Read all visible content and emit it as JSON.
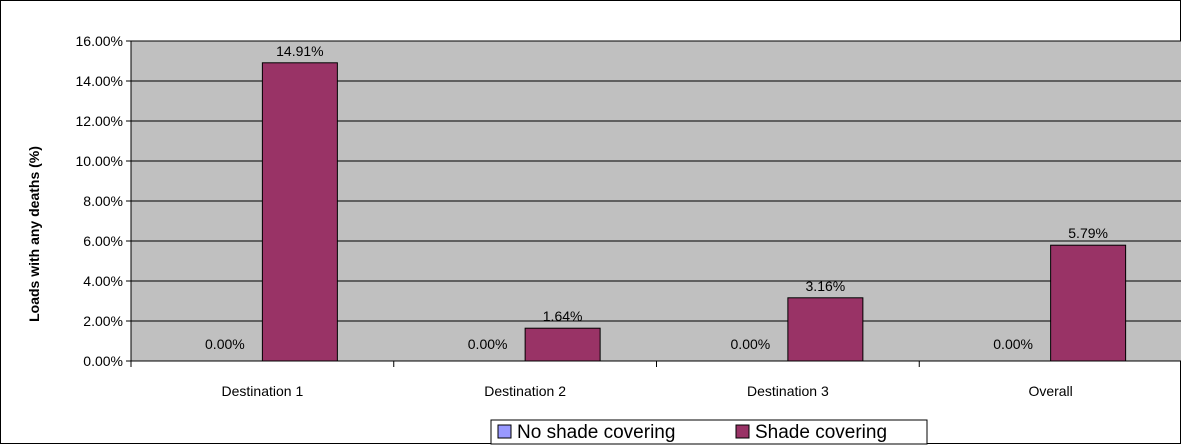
{
  "chart_data": {
    "type": "bar",
    "title": "",
    "xlabel": "",
    "ylabel": "Loads with any deaths (%)",
    "ylim": [
      0,
      16
    ],
    "ytick_step": 2,
    "ytick_labels": [
      "0.00%",
      "2.00%",
      "4.00%",
      "6.00%",
      "8.00%",
      "10.00%",
      "12.00%",
      "14.00%",
      "16.00%"
    ],
    "categories": [
      "Destination 1",
      "Destination 2",
      "Destination 3",
      "Overall"
    ],
    "series": [
      {
        "name": "No shade covering",
        "color": "#9999ff",
        "values": [
          0.0,
          0.0,
          0.0,
          0.0
        ],
        "labels": [
          "0.00%",
          "0.00%",
          "0.00%",
          "0.00%"
        ]
      },
      {
        "name": "Shade covering",
        "color": "#993366",
        "values": [
          14.91,
          1.64,
          3.16,
          5.79
        ],
        "labels": [
          "14.91%",
          "1.64%",
          "3.16%",
          "5.79%"
        ]
      }
    ],
    "plot_background": "#c0c0c0",
    "grid": true,
    "legend_position": "bottom"
  }
}
